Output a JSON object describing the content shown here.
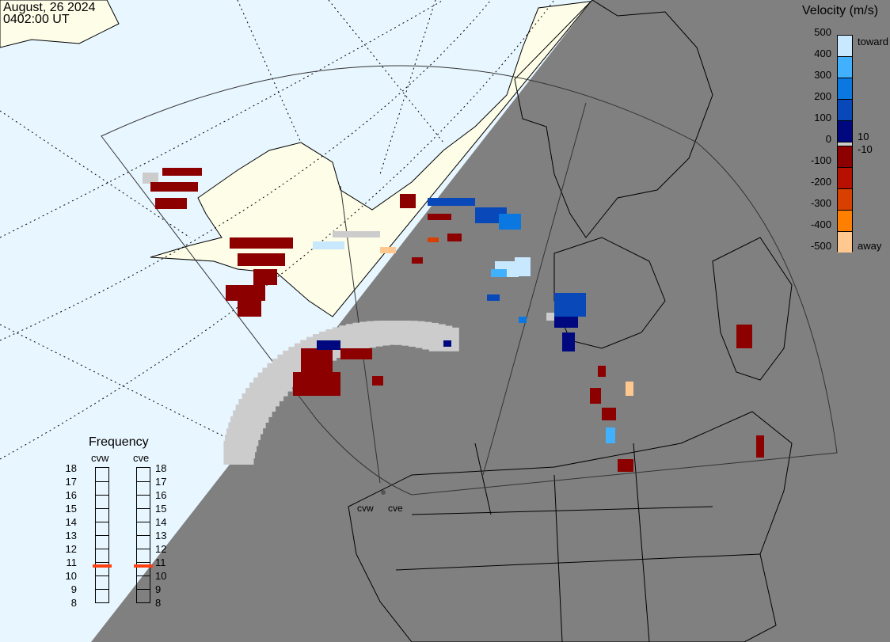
{
  "header": {
    "date": "August, 26 2024",
    "time": "0402:00 UT"
  },
  "colorbar": {
    "title": "Velocity (m/s)",
    "ticks": [
      "500",
      "400",
      "300",
      "200",
      "100",
      "0",
      "-100",
      "-200",
      "-300",
      "-400",
      "-500"
    ],
    "label_toward": "toward",
    "label_away": "away",
    "label_pos_threshold": "10",
    "label_neg_threshold": "-10",
    "colors": [
      "#c8e8ff",
      "#40b0ff",
      "#0a78e0",
      "#0848b8",
      "#000880",
      "#cccccc",
      "#8c0000",
      "#b81000",
      "#d84000",
      "#ff8000",
      "#ffc890"
    ]
  },
  "frequency": {
    "title": "Frequency",
    "radars": [
      {
        "name": "cvw",
        "value_mhz": 10.7
      },
      {
        "name": "cve",
        "value_mhz": 10.7
      }
    ],
    "ticks": [
      "18",
      "17",
      "16",
      "15",
      "14",
      "13",
      "12",
      "11",
      "10",
      "9",
      "8"
    ],
    "marker_color": "#ff4010"
  },
  "map": {
    "radar_labels": [
      "cvw",
      "cve"
    ],
    "ocean_color": "#e8f6ff",
    "land_color": "#fdfde8",
    "night_color": "#808080",
    "ground_scatter_color": "#cccccc"
  }
}
